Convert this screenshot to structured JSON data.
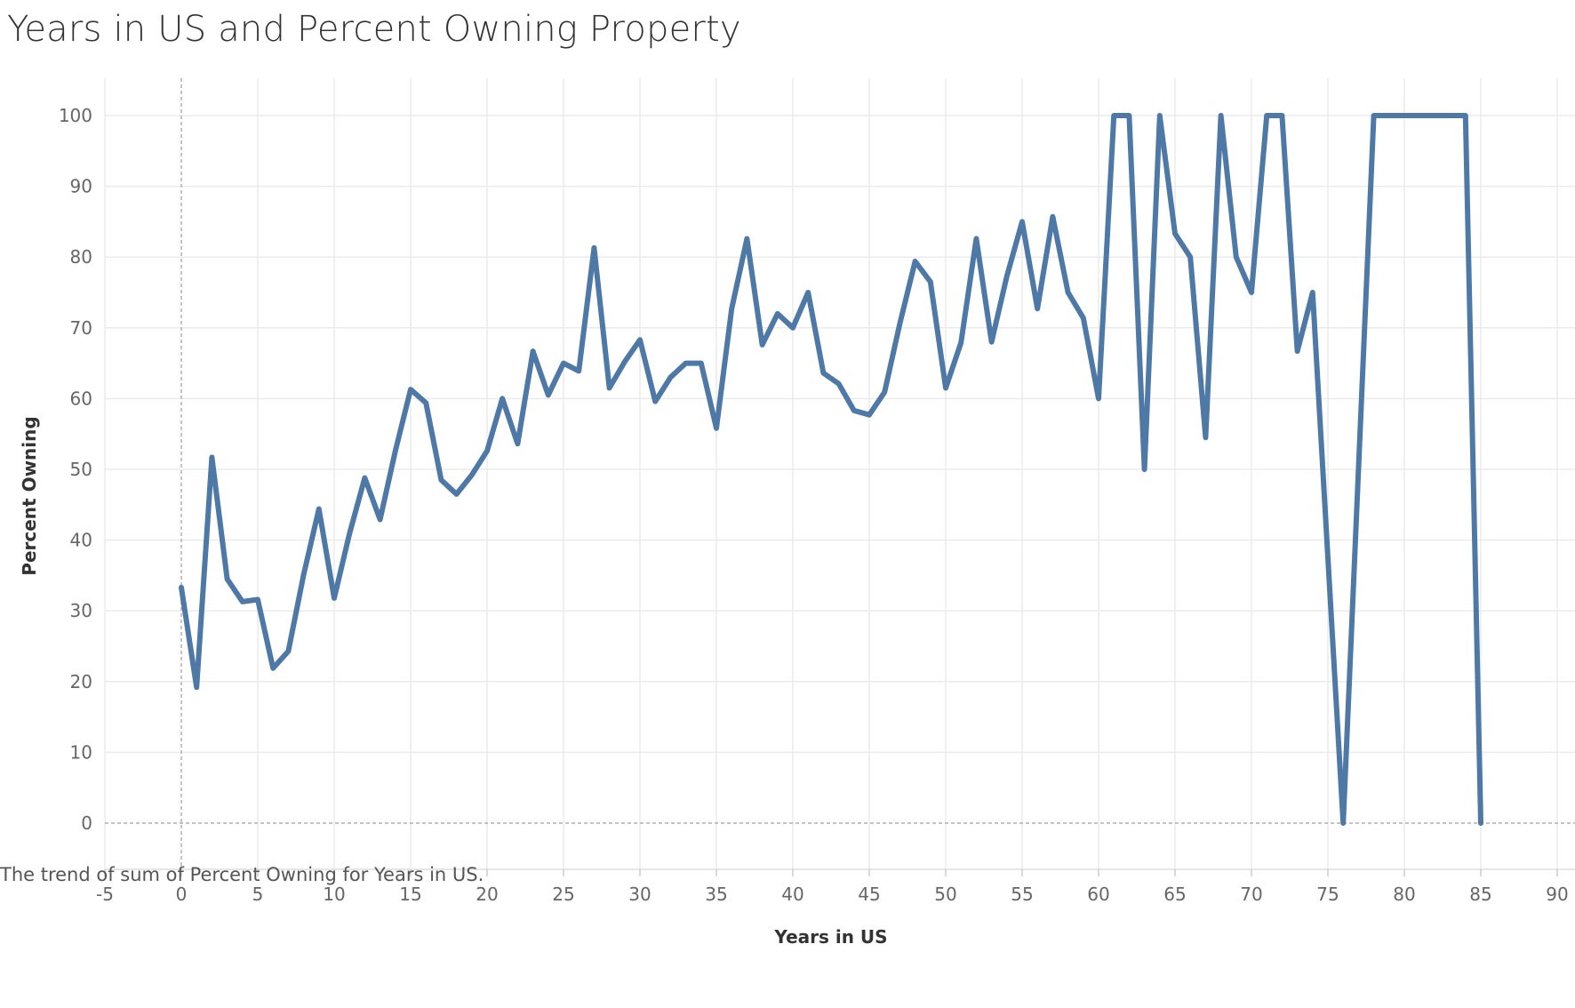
{
  "title": "Years in US and Percent Owning Property",
  "caption": "The trend of sum of Percent Owning for Years in US.",
  "colors": {
    "line": "#4e79a7",
    "grid": "#ebebeb",
    "zero_line": "#b0b0b0",
    "text": "#333333",
    "tick": "#666666"
  },
  "chart_data": {
    "type": "line",
    "title": "Years in US and Percent Owning Property",
    "xlabel": "Years in US",
    "ylabel": "Percent Owning",
    "xlim": [
      -5,
      90
    ],
    "ylim": [
      -5,
      105
    ],
    "x_ticks": [
      -5,
      0,
      5,
      10,
      15,
      20,
      25,
      30,
      35,
      40,
      45,
      50,
      55,
      60,
      65,
      70,
      75,
      80,
      85,
      90
    ],
    "y_ticks": [
      0,
      10,
      20,
      30,
      40,
      50,
      60,
      70,
      80,
      90,
      100
    ],
    "grid": true,
    "series": [
      {
        "x": [
          0,
          1,
          2,
          3,
          4,
          5,
          6,
          7,
          8,
          9,
          10,
          11,
          12,
          13,
          14,
          15,
          16,
          17,
          18,
          19,
          20,
          21,
          22,
          23,
          24,
          25,
          26,
          27,
          28,
          29,
          30,
          31,
          32,
          33,
          34,
          35,
          36,
          37,
          38,
          39,
          40,
          41,
          42,
          43,
          44,
          45,
          46,
          47,
          48,
          49,
          50,
          51,
          52,
          53,
          54,
          55,
          56,
          57,
          58,
          59,
          60,
          61,
          62,
          63,
          64,
          65,
          66,
          67,
          68,
          69,
          70,
          71,
          72,
          73,
          74,
          76,
          78,
          79,
          80,
          81,
          82,
          83,
          84,
          85
        ],
        "y": [
          33.3,
          19.2,
          51.7,
          34.5,
          31.3,
          31.6,
          21.9,
          24.3,
          35.1,
          44.4,
          31.8,
          40.9,
          48.8,
          42.9,
          52.6,
          61.3,
          59.4,
          48.5,
          46.5,
          49.2,
          52.6,
          60.0,
          53.6,
          66.7,
          60.5,
          65.0,
          63.9,
          81.3,
          61.5,
          65.2,
          68.3,
          59.6,
          63.0,
          65.0,
          65.0,
          55.8,
          72.7,
          82.6,
          67.6,
          72.0,
          70.0,
          75.0,
          63.6,
          62.1,
          58.3,
          57.7,
          60.9,
          70.6,
          79.4,
          76.5,
          61.5,
          67.9,
          82.6,
          68.0,
          77.3,
          85.0,
          72.7,
          85.7,
          75.0,
          71.4,
          60.0,
          100,
          100,
          50.0,
          100,
          83.3,
          80.0,
          54.5,
          100,
          80.0,
          75.0,
          100,
          100,
          66.7,
          75.0,
          0,
          100,
          100,
          100,
          100,
          100,
          100,
          100,
          0
        ]
      }
    ]
  }
}
